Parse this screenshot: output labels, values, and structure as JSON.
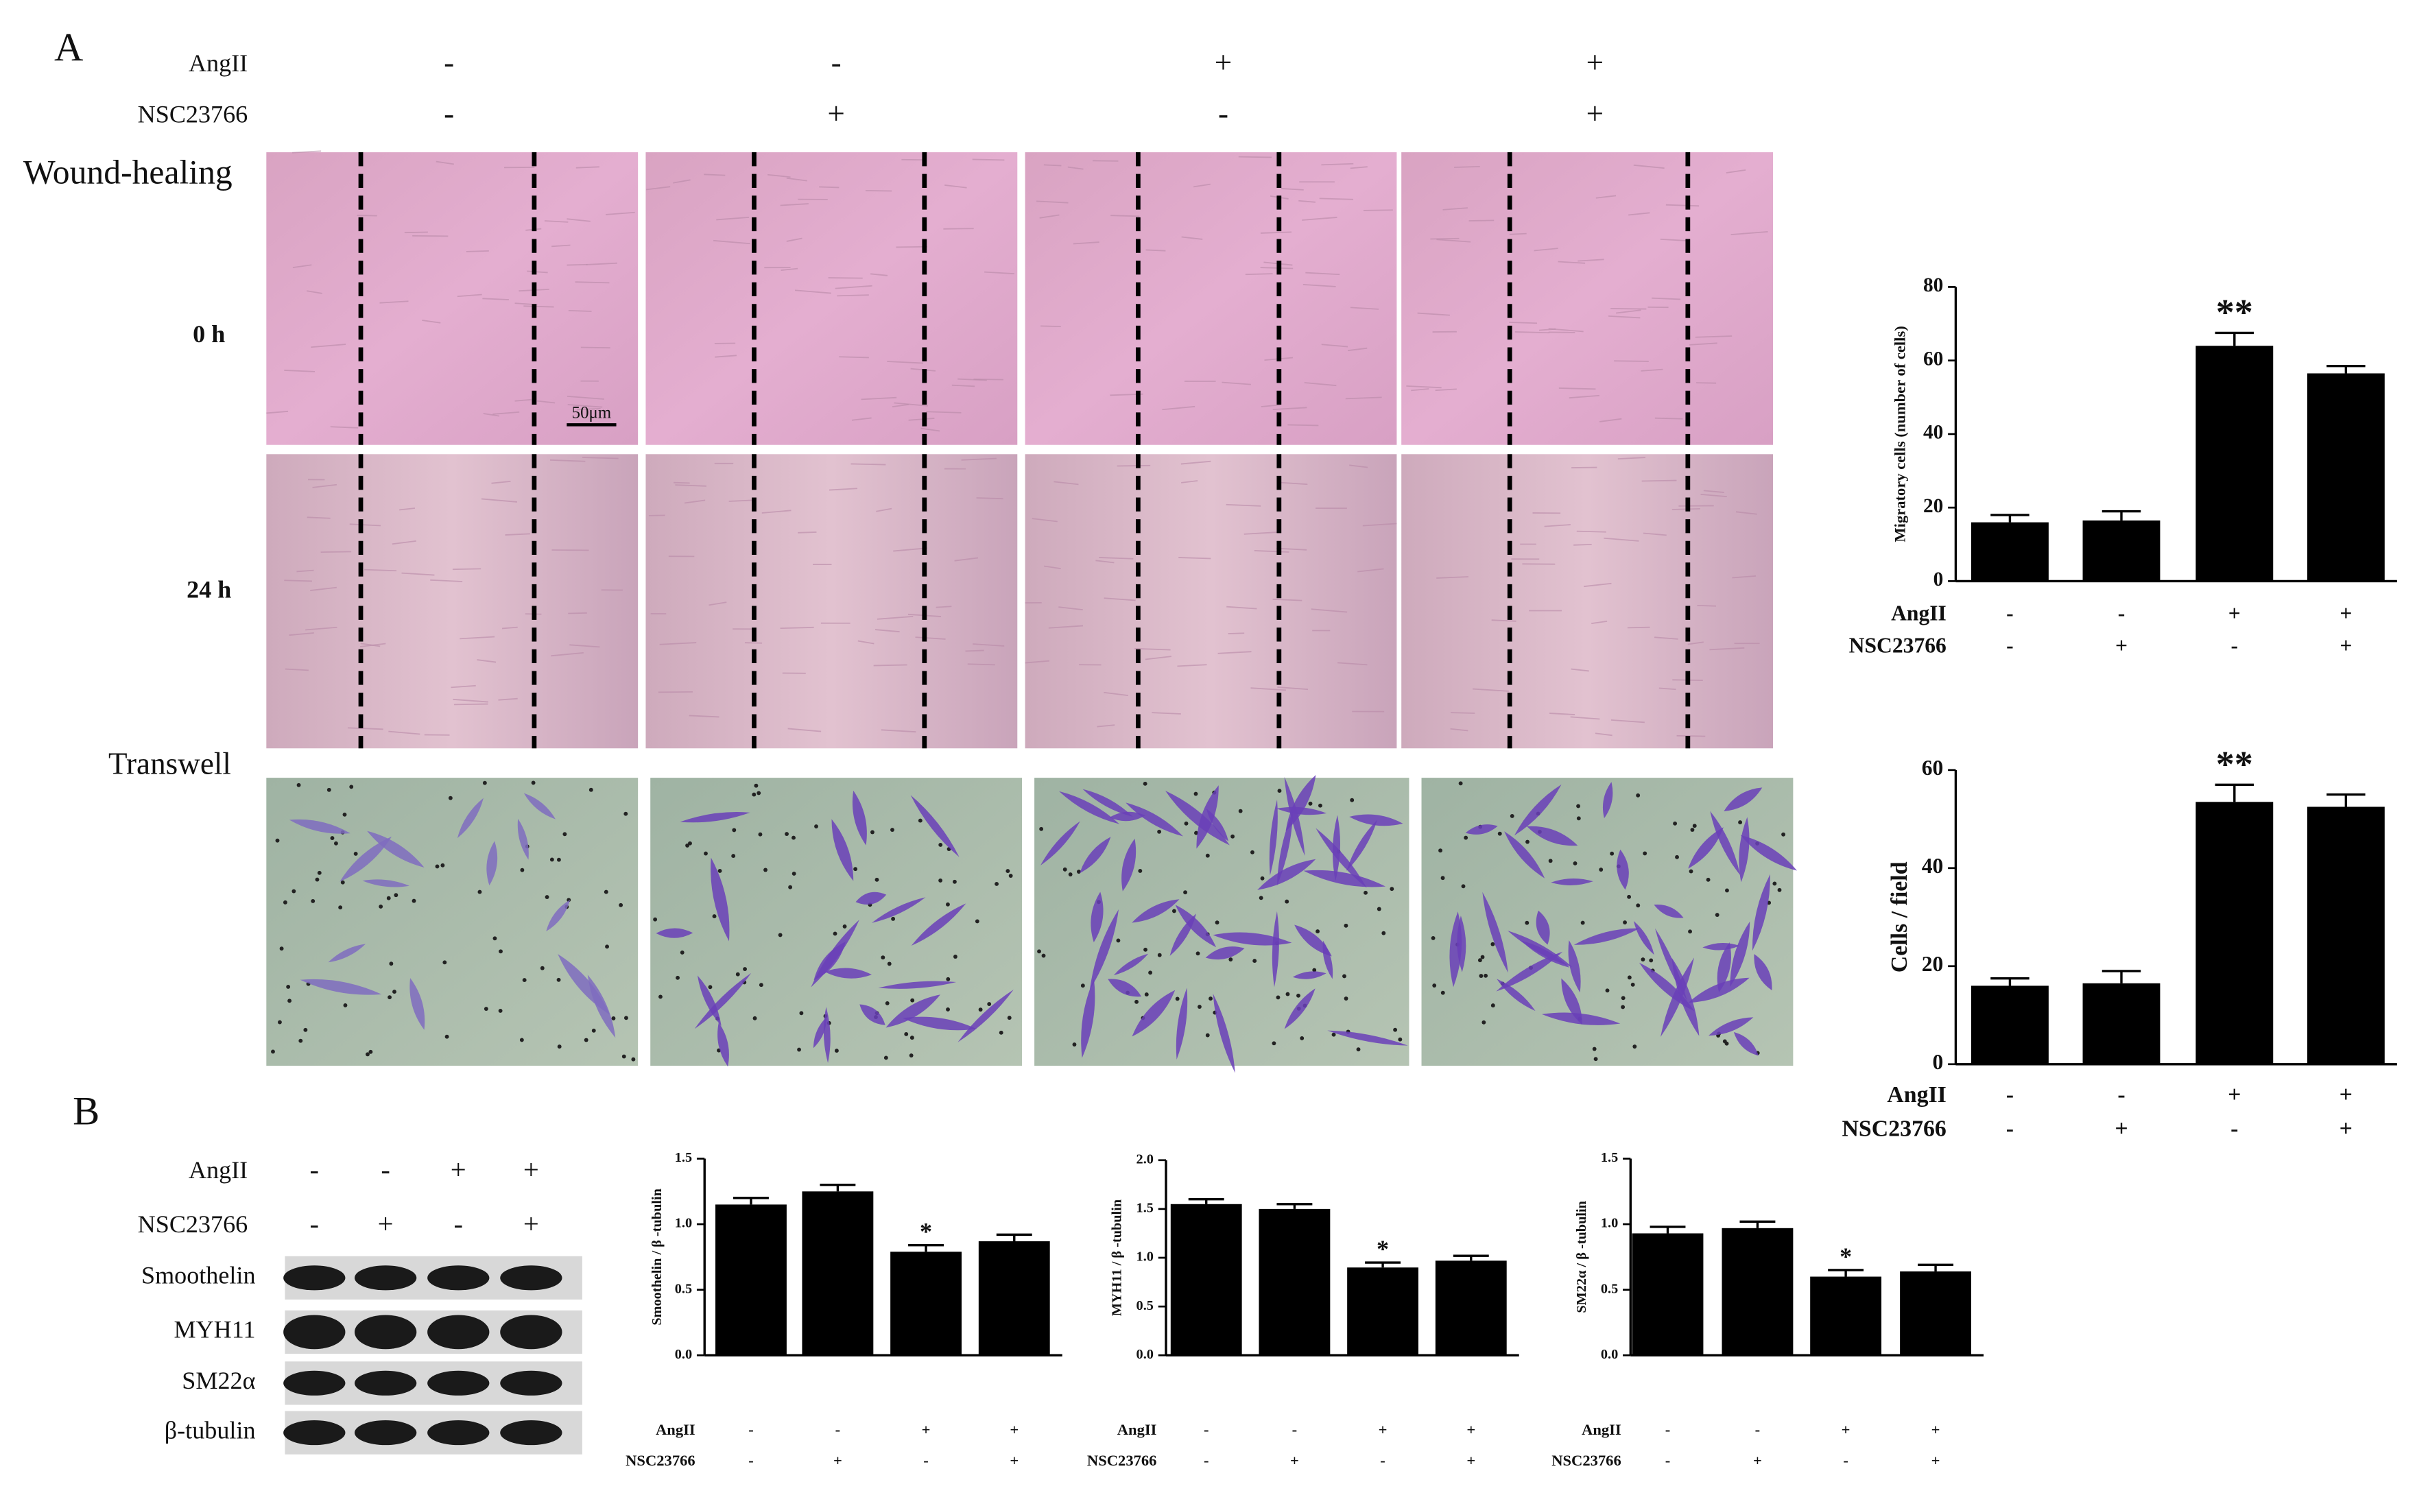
{
  "panel_labels": [
    "A",
    "B"
  ],
  "panel_a": {
    "conditions": [
      {
        "label": "AngII",
        "signs": [
          "-",
          "-",
          "+",
          "+"
        ]
      },
      {
        "label": "NSC23766",
        "signs": [
          "-",
          "+",
          "-",
          "+"
        ]
      }
    ],
    "wound_label": "Wound-healing",
    "rows": [
      "0 h",
      "24 h"
    ],
    "scale_bar": "50μm",
    "transwell_label": "Transwell"
  },
  "panel_b": {
    "conditions": [
      {
        "label": "AngII",
        "signs": [
          "-",
          "-",
          "+",
          "+"
        ]
      },
      {
        "label": "NSC23766",
        "signs": [
          "-",
          "+",
          "-",
          "+"
        ]
      }
    ],
    "bands": [
      "Smoothelin",
      "MYH11",
      "SM22α",
      "β-tubulin"
    ]
  },
  "chart_data": [
    {
      "type": "bar",
      "ylabel": "Migratory cells (number of cells)",
      "color": "#000000",
      "rows": [
        {
          "label": "AngII",
          "signs": [
            "-",
            "-",
            "+",
            "+"
          ]
        },
        {
          "label": "NSC23766",
          "signs": [
            "-",
            "+",
            "-",
            "+"
          ]
        }
      ],
      "values": [
        16,
        16.5,
        64,
        56.5
      ],
      "errors": [
        2,
        2.5,
        3.5,
        2
      ],
      "annotations": [
        null,
        null,
        "**",
        null
      ],
      "ylim": [
        0,
        80
      ],
      "yticks": [
        0,
        20,
        40,
        60,
        80
      ]
    },
    {
      "type": "bar",
      "ylabel": "Cells / field",
      "color": "#000000",
      "rows": [
        {
          "label": "AngII",
          "signs": [
            "-",
            "-",
            "+",
            "+"
          ]
        },
        {
          "label": "NSC23766",
          "signs": [
            "-",
            "+",
            "-",
            "+"
          ]
        }
      ],
      "values": [
        16,
        16.5,
        53.5,
        52.5
      ],
      "errors": [
        1.5,
        2.5,
        3.5,
        2.5
      ],
      "annotations": [
        null,
        null,
        "**",
        null
      ],
      "ylim": [
        0,
        60
      ],
      "yticks": [
        0,
        20,
        40,
        60
      ]
    },
    {
      "type": "bar",
      "ylabel": "Smoothelin / β -tubulin",
      "color": "#000000",
      "rows": [
        {
          "label": "AngII",
          "signs": [
            "-",
            "-",
            "+",
            "+"
          ]
        },
        {
          "label": "NSC23766",
          "signs": [
            "-",
            "+",
            "-",
            "+"
          ]
        }
      ],
      "values": [
        1.15,
        1.25,
        0.79,
        0.87
      ],
      "errors": [
        0.05,
        0.05,
        0.05,
        0.05
      ],
      "annotations": [
        null,
        null,
        "*",
        null
      ],
      "ylim": [
        0,
        1.5
      ],
      "yticks": [
        {
          "value": 0,
          "label": "0.0"
        },
        0.5,
        {
          "value": 1,
          "label": "1.0"
        },
        1.5
      ]
    },
    {
      "type": "bar",
      "ylabel": "MYH11 / β -tubulin",
      "color": "#000000",
      "rows": [
        {
          "label": "AngII",
          "signs": [
            "-",
            "-",
            "+",
            "+"
          ]
        },
        {
          "label": "NSC23766",
          "signs": [
            "-",
            "+",
            "-",
            "+"
          ]
        }
      ],
      "values": [
        1.55,
        1.5,
        0.9,
        0.97
      ],
      "errors": [
        0.05,
        0.05,
        0.05,
        0.05
      ],
      "annotations": [
        null,
        null,
        "*",
        null
      ],
      "ylim": [
        0,
        2
      ],
      "yticks": [
        {
          "value": 0,
          "label": "0.0"
        },
        0.5,
        {
          "value": 1,
          "label": "1.0"
        },
        1.5,
        {
          "value": 2,
          "label": "2.0"
        }
      ]
    },
    {
      "type": "bar",
      "ylabel": "SM22α / β -tubulin",
      "color": "#000000",
      "rows": [
        {
          "label": "AngII",
          "signs": [
            "-",
            "-",
            "+",
            "+"
          ]
        },
        {
          "label": "NSC23766",
          "signs": [
            "-",
            "+",
            "-",
            "+"
          ]
        }
      ],
      "values": [
        0.93,
        0.97,
        0.6,
        0.64
      ],
      "errors": [
        0.05,
        0.05,
        0.05,
        0.05
      ],
      "annotations": [
        null,
        null,
        "*",
        null
      ],
      "ylim": [
        0,
        1.5
      ],
      "yticks": [
        {
          "value": 0,
          "label": "0.0"
        },
        0.5,
        {
          "value": 1,
          "label": "1.0"
        },
        1.5
      ]
    }
  ]
}
